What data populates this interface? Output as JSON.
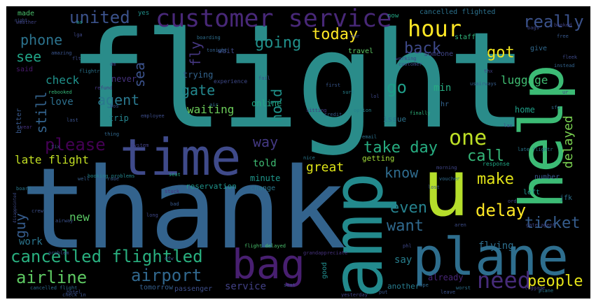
{
  "wordcloud": {
    "words": [
      {
        "text": "flight",
        "color": "#2a8c8a"
      },
      {
        "text": "thank",
        "color": "#33638d"
      },
      {
        "text": "amp",
        "color": "#238a8d"
      },
      {
        "text": "help",
        "color": "#3cbb75"
      },
      {
        "text": "u",
        "color": "#b5de2b"
      },
      {
        "text": "time",
        "color": "#3f4a8a"
      },
      {
        "text": "plane",
        "color": "#2e6e8e"
      },
      {
        "text": "customer service",
        "color": "#482878"
      },
      {
        "text": "bag",
        "color": "#481f70"
      },
      {
        "text": "hour",
        "color": "#fde725"
      },
      {
        "text": "united",
        "color": "#3b528b"
      },
      {
        "text": "cancelled flightled",
        "color": "#29af7f"
      },
      {
        "text": "need",
        "color": "#472c7a"
      },
      {
        "text": "one",
        "color": "#bddf26"
      },
      {
        "text": "airline",
        "color": "#5ec962"
      },
      {
        "text": "airport",
        "color": "#31688e"
      },
      {
        "text": "people",
        "color": "#e5e419"
      },
      {
        "text": "take day",
        "color": "#27ad81"
      },
      {
        "text": "delay",
        "color": "#fde725"
      },
      {
        "text": "ticket",
        "color": "#365d8d"
      },
      {
        "text": "please",
        "color": "#440154"
      },
      {
        "text": "really",
        "color": "#3b528b"
      },
      {
        "text": "phone",
        "color": "#2c738e"
      },
      {
        "text": "today",
        "color": "#fde725"
      },
      {
        "text": "got",
        "color": "#f4e61e"
      },
      {
        "text": "back",
        "color": "#3e4989"
      },
      {
        "text": "going",
        "color": "#21918c"
      },
      {
        "text": "see",
        "color": "#20a486"
      },
      {
        "text": "check",
        "color": "#20928c"
      },
      {
        "text": "agent",
        "color": "#2a788e"
      },
      {
        "text": "gate",
        "color": "#23888e"
      },
      {
        "text": "go",
        "color": "#1f9e89"
      },
      {
        "text": "still",
        "color": "#33638d"
      },
      {
        "text": "way",
        "color": "#443983"
      },
      {
        "text": "call",
        "color": "#35b779"
      },
      {
        "text": "know",
        "color": "#2f6c8e"
      },
      {
        "text": "make",
        "color": "#e2e418"
      },
      {
        "text": "even",
        "color": "#26828e"
      },
      {
        "text": "want",
        "color": "#30698e"
      },
      {
        "text": "guy",
        "color": "#365c8d"
      },
      {
        "text": "late flight",
        "color": "#c2df23"
      },
      {
        "text": "hold",
        "color": "#20938c"
      },
      {
        "text": "luggage",
        "color": "#40bd72"
      },
      {
        "text": "delayed",
        "color": "#7ad151"
      },
      {
        "text": "waiting",
        "color": "#6ccd5a"
      },
      {
        "text": "fly",
        "color": "#453781"
      },
      {
        "text": "sea",
        "color": "#3b528b"
      },
      {
        "text": "great",
        "color": "#dde318"
      },
      {
        "text": "told",
        "color": "#3fbc73"
      },
      {
        "text": "love",
        "color": "#2d708e"
      },
      {
        "text": "new",
        "color": "#5ac864"
      },
      {
        "text": "work",
        "color": "#2b758e"
      },
      {
        "text": "service",
        "color": "#424186"
      },
      {
        "text": "online",
        "color": "#22a785"
      },
      {
        "text": "min",
        "color": "#26ad81"
      },
      {
        "text": "trip",
        "color": "#25848e"
      },
      {
        "text": "never",
        "color": "#46327e"
      },
      {
        "text": "trying",
        "color": "#33638d"
      },
      {
        "text": "minute",
        "color": "#1f968b"
      },
      {
        "text": "flying",
        "color": "#2e6f8e"
      },
      {
        "text": "say",
        "color": "#277f8e"
      },
      {
        "text": "tomorrow",
        "color": "#355f8d"
      },
      {
        "text": "passenger",
        "color": "#3d4e8a"
      },
      {
        "text": "reservation",
        "color": "#1f948c"
      },
      {
        "text": "getting",
        "color": "#a0da39"
      },
      {
        "text": "another",
        "color": "#287c8e"
      },
      {
        "text": "already",
        "color": "#482677"
      },
      {
        "text": "made",
        "color": "#4ac16d"
      },
      {
        "text": "yes",
        "color": "#21918c"
      },
      {
        "text": "now",
        "color": "#22a884"
      },
      {
        "text": "flight delayed",
        "color": "#4ac16d"
      },
      {
        "text": "cancelled flighted",
        "color": "#2c728e"
      },
      {
        "text": "staff",
        "color": "#31b57b"
      },
      {
        "text": "give",
        "color": "#31688e"
      },
      {
        "text": "wait",
        "color": "#3e4a89"
      },
      {
        "text": "travel",
        "color": "#5dc863"
      },
      {
        "text": "someone",
        "color": "#404688"
      },
      {
        "text": "said",
        "color": "#481a6c"
      },
      {
        "text": "better",
        "color": "#38598c"
      },
      {
        "text": "issue",
        "color": "#2c738e"
      },
      {
        "text": "home",
        "color": "#1fa088"
      },
      {
        "text": "left",
        "color": "#21918c"
      },
      {
        "text": "jfk",
        "color": "#2d708e"
      },
      {
        "text": "number",
        "color": "#38588c"
      },
      {
        "text": "change",
        "color": "#2a788e"
      },
      {
        "text": "good",
        "color": "#228d8d"
      },
      {
        "text": "experience",
        "color": "#3e4989"
      },
      {
        "text": "booking problems",
        "color": "#24878e"
      },
      {
        "text": "response",
        "color": "#21a685"
      },
      {
        "text": "update",
        "color": "#1f988b"
      },
      {
        "text": "rebooked",
        "color": "#35b779"
      },
      {
        "text": "refund",
        "color": "#453882"
      },
      {
        "text": "employee",
        "color": "#3d4d8a"
      },
      {
        "text": "option",
        "color": "#26818e"
      },
      {
        "text": "finally",
        "color": "#2fb47c"
      },
      {
        "text": "late flightr",
        "color": "#2a768e"
      },
      {
        "text": "email",
        "color": "#2c718e"
      },
      {
        "text": "boarding",
        "color": "#2e6e8e"
      },
      {
        "text": "tonight",
        "color": "#34608d"
      },
      {
        "text": "weather",
        "color": "#414487"
      },
      {
        "text": "first",
        "color": "#39568c"
      },
      {
        "text": "nice",
        "color": "#2a788e"
      },
      {
        "text": "bad",
        "color": "#38598c"
      },
      {
        "text": "aa",
        "color": "#1f9e89"
      },
      {
        "text": "sure",
        "color": "#26828e"
      },
      {
        "text": "problem",
        "color": "#3b528b"
      },
      {
        "text": "gate agent",
        "color": "#3f4788"
      },
      {
        "text": "seat",
        "color": "#25ac82"
      },
      {
        "text": "dm",
        "color": "#404588"
      },
      {
        "text": "flightr",
        "color": "#2b748e"
      },
      {
        "text": "thing",
        "color": "#31688e"
      },
      {
        "text": "cancelled flight",
        "color": "#2f6b8e"
      },
      {
        "text": "hr",
        "color": "#33638d"
      },
      {
        "text": "last",
        "color": "#3b528b"
      },
      {
        "text": "sitting",
        "color": "#443a83"
      },
      {
        "text": "worst",
        "color": "#2d708e"
      },
      {
        "text": "year",
        "color": "#46307e"
      },
      {
        "text": "night",
        "color": "#3d4e8a"
      },
      {
        "text": "rude",
        "color": "#38598c"
      },
      {
        "text": "board",
        "color": "#2a788e"
      },
      {
        "text": "plane",
        "color": "#29798e"
      },
      {
        "text": "disappointed",
        "color": "#3e4c8a"
      },
      {
        "text": "lost",
        "color": "#3a538b"
      },
      {
        "text": "voucher",
        "color": "#2f6c8e"
      },
      {
        "text": "yesterday",
        "color": "#414487"
      },
      {
        "text": "hotel",
        "color": "#3c4f8a"
      },
      {
        "text": "grandappreciate",
        "color": "#46327e"
      },
      {
        "text": "put",
        "color": "#39568c"
      },
      {
        "text": "phl",
        "color": "#3f4889"
      },
      {
        "text": "fleek",
        "color": "#3e4a89"
      },
      {
        "text": "instead",
        "color": "#33638d"
      },
      {
        "text": "leave",
        "color": "#3b528b"
      },
      {
        "text": "hope",
        "color": "#31688e"
      },
      {
        "text": "free",
        "color": "#38598c"
      },
      {
        "text": "bags",
        "color": "#3f4788"
      },
      {
        "text": "well",
        "color": "#355e8d"
      },
      {
        "text": "credit",
        "color": "#365c8d"
      },
      {
        "text": "morning",
        "color": "#404688"
      },
      {
        "text": "sfo",
        "color": "#31688e"
      },
      {
        "text": "crew",
        "color": "#3c4f8a"
      },
      {
        "text": "air",
        "color": "#2f6c8e"
      },
      {
        "text": "luggage",
        "color": "#433e85"
      },
      {
        "text": "fail",
        "color": "#3b528b"
      },
      {
        "text": "flt",
        "color": "#3d4e8a"
      },
      {
        "text": "usairways",
        "color": "#355e8d"
      },
      {
        "text": "customer",
        "color": "#3e4c8a"
      },
      {
        "text": "lol",
        "color": "#3f4788"
      },
      {
        "text": "tix",
        "color": "#3d4d8a"
      },
      {
        "text": "airway",
        "color": "#3b518b"
      },
      {
        "text": "long",
        "color": "#3f4889"
      },
      {
        "text": "amazing",
        "color": "#3a548c"
      },
      {
        "text": "working",
        "color": "#414287"
      },
      {
        "text": "lax",
        "color": "#3f4788"
      },
      {
        "text": "system",
        "color": "#423f85"
      },
      {
        "text": "aren",
        "color": "#3d4d8a"
      },
      {
        "text": "bos",
        "color": "#3b528b"
      },
      {
        "text": "dfw",
        "color": "#3a538b"
      },
      {
        "text": "booked",
        "color": "#414287"
      },
      {
        "text": "ord",
        "color": "#3e4a89"
      },
      {
        "text": "thx",
        "color": "#424186"
      },
      {
        "text": "lga",
        "color": "#3f4889"
      },
      {
        "text": "stuck",
        "color": "#46307e"
      },
      {
        "text": "ewr",
        "color": "#404588"
      },
      {
        "text": "seat",
        "color": "#3d4d8a"
      },
      {
        "text": "ur",
        "color": "#433e85"
      },
      {
        "text": "check in",
        "color": "#3b528b"
      }
    ]
  }
}
